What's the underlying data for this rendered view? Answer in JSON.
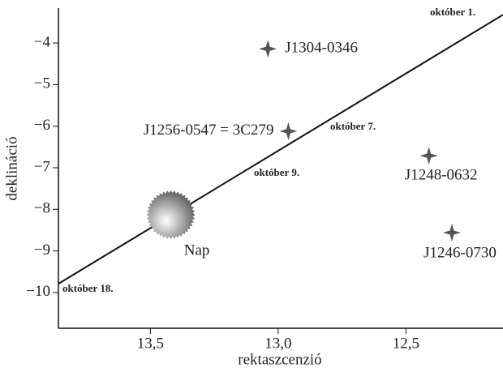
{
  "chart_data": {
    "type": "scatter",
    "xlabel": "rektaszcenzió",
    "ylabel": "deklináció",
    "xlim": [
      13.86,
      12.12
    ],
    "ylim": [
      -10.86,
      -3.16
    ],
    "xticks": [
      {
        "value": 13.5,
        "label": "13,5"
      },
      {
        "value": 13.0,
        "label": "13,0"
      },
      {
        "value": 12.5,
        "label": "12,5"
      }
    ],
    "yticks": [
      {
        "value": -4,
        "label": "−4"
      },
      {
        "value": -5,
        "label": "−5"
      },
      {
        "value": -6,
        "label": "−6"
      },
      {
        "value": -7,
        "label": "−7"
      },
      {
        "value": -8,
        "label": "−8"
      },
      {
        "value": -9,
        "label": "−9"
      },
      {
        "value": -10,
        "label": "−10"
      }
    ],
    "path": {
      "x": [
        13.86,
        12.12
      ],
      "y": [
        -9.79,
        -3.32
      ],
      "color": "#111111"
    },
    "points": [
      {
        "label": "J1304-0346",
        "x": 13.04,
        "y": -4.14
      },
      {
        "label": "J1256-0547 = 3C279",
        "x": 12.96,
        "y": -6.12
      },
      {
        "label": "J1248-0632",
        "x": 12.41,
        "y": -6.71
      },
      {
        "label": "J1246-0730",
        "x": 12.32,
        "y": -8.56
      }
    ],
    "point_color": "#555555",
    "sun": {
      "label": "Nap",
      "x": 13.42,
      "y": -8.13
    },
    "annotations": [
      "október 1.",
      "október 7.",
      "október 9.",
      "október 18."
    ]
  }
}
